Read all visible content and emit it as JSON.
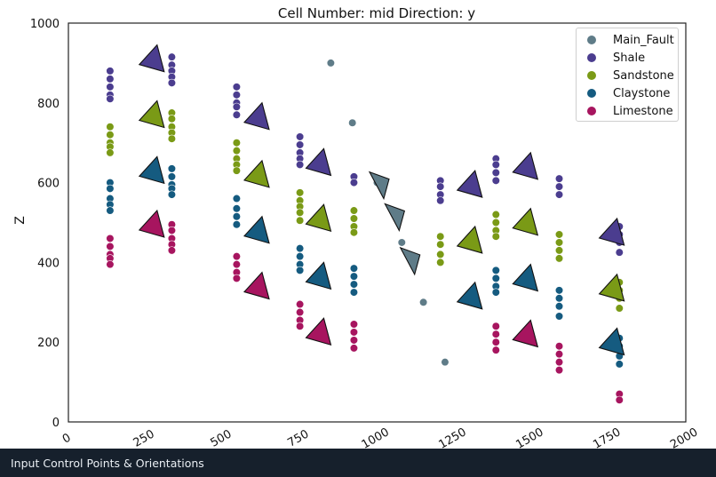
{
  "chart_data": {
    "type": "scatter",
    "title": "Cell Number: mid Direction: y",
    "xlabel": "",
    "ylabel": "Z",
    "xlim": [
      0,
      2000
    ],
    "ylim": [
      0,
      1000
    ],
    "x_ticks": [
      "0",
      "250",
      "500",
      "750",
      "1000",
      "1250",
      "1500",
      "1750",
      "2000"
    ],
    "y_ticks": [
      "0",
      "200",
      "400",
      "600",
      "800",
      "1000"
    ],
    "grid": false,
    "legend_position": "top-right",
    "series": [
      {
        "name": "Main_Fault",
        "color": "#5f7c88",
        "points": [
          [
            850,
            900
          ],
          [
            920,
            750
          ],
          [
            1000,
            600
          ],
          [
            1080,
            450
          ],
          [
            1150,
            300
          ],
          [
            1220,
            150
          ]
        ],
        "orientations": [
          [
            1010,
            600
          ],
          [
            1060,
            520
          ],
          [
            1110,
            410
          ]
        ]
      },
      {
        "name": "Shale",
        "color": "#4b3d8f",
        "points": [
          [
            135,
            880
          ],
          [
            135,
            860
          ],
          [
            135,
            840
          ],
          [
            135,
            820
          ],
          [
            135,
            810
          ],
          [
            335,
            915
          ],
          [
            335,
            895
          ],
          [
            335,
            880
          ],
          [
            335,
            865
          ],
          [
            335,
            850
          ],
          [
            545,
            840
          ],
          [
            545,
            820
          ],
          [
            545,
            800
          ],
          [
            545,
            790
          ],
          [
            545,
            770
          ],
          [
            750,
            715
          ],
          [
            750,
            695
          ],
          [
            750,
            675
          ],
          [
            750,
            660
          ],
          [
            750,
            645
          ],
          [
            925,
            615
          ],
          [
            925,
            600
          ],
          [
            1205,
            605
          ],
          [
            1205,
            590
          ],
          [
            1205,
            570
          ],
          [
            1205,
            555
          ],
          [
            1385,
            660
          ],
          [
            1385,
            645
          ],
          [
            1385,
            625
          ],
          [
            1385,
            605
          ],
          [
            1590,
            610
          ],
          [
            1590,
            590
          ],
          [
            1590,
            570
          ],
          [
            1785,
            490
          ],
          [
            1785,
            470
          ],
          [
            1785,
            450
          ],
          [
            1785,
            425
          ]
        ],
        "orientations": [
          [
            270,
            905
          ],
          [
            610,
            760
          ],
          [
            810,
            645
          ],
          [
            1300,
            590
          ],
          [
            1480,
            635
          ],
          [
            1760,
            470
          ]
        ]
      },
      {
        "name": "Sandstone",
        "color": "#7a9a16",
        "points": [
          [
            135,
            740
          ],
          [
            135,
            720
          ],
          [
            135,
            700
          ],
          [
            135,
            690
          ],
          [
            135,
            675
          ],
          [
            335,
            775
          ],
          [
            335,
            760
          ],
          [
            335,
            740
          ],
          [
            335,
            725
          ],
          [
            335,
            710
          ],
          [
            545,
            700
          ],
          [
            545,
            680
          ],
          [
            545,
            660
          ],
          [
            545,
            645
          ],
          [
            545,
            630
          ],
          [
            750,
            575
          ],
          [
            750,
            555
          ],
          [
            750,
            540
          ],
          [
            750,
            525
          ],
          [
            750,
            505
          ],
          [
            925,
            530
          ],
          [
            925,
            510
          ],
          [
            925,
            490
          ],
          [
            925,
            475
          ],
          [
            1205,
            465
          ],
          [
            1205,
            445
          ],
          [
            1205,
            420
          ],
          [
            1205,
            400
          ],
          [
            1385,
            520
          ],
          [
            1385,
            500
          ],
          [
            1385,
            480
          ],
          [
            1385,
            465
          ],
          [
            1590,
            470
          ],
          [
            1590,
            450
          ],
          [
            1590,
            430
          ],
          [
            1590,
            410
          ],
          [
            1785,
            350
          ],
          [
            1785,
            330
          ],
          [
            1785,
            310
          ],
          [
            1785,
            285
          ]
        ],
        "orientations": [
          [
            270,
            765
          ],
          [
            610,
            615
          ],
          [
            810,
            505
          ],
          [
            1300,
            450
          ],
          [
            1480,
            495
          ],
          [
            1760,
            330
          ]
        ]
      },
      {
        "name": "Claystone",
        "color": "#155b80",
        "points": [
          [
            135,
            600
          ],
          [
            135,
            585
          ],
          [
            135,
            560
          ],
          [
            135,
            545
          ],
          [
            135,
            530
          ],
          [
            335,
            635
          ],
          [
            335,
            615
          ],
          [
            335,
            595
          ],
          [
            335,
            585
          ],
          [
            335,
            570
          ],
          [
            545,
            560
          ],
          [
            545,
            535
          ],
          [
            545,
            515
          ],
          [
            545,
            495
          ],
          [
            750,
            435
          ],
          [
            750,
            415
          ],
          [
            750,
            395
          ],
          [
            750,
            380
          ],
          [
            925,
            385
          ],
          [
            925,
            365
          ],
          [
            925,
            345
          ],
          [
            925,
            325
          ],
          [
            1385,
            380
          ],
          [
            1385,
            360
          ],
          [
            1385,
            340
          ],
          [
            1385,
            325
          ],
          [
            1590,
            330
          ],
          [
            1590,
            310
          ],
          [
            1590,
            290
          ],
          [
            1590,
            265
          ],
          [
            1785,
            210
          ],
          [
            1785,
            190
          ],
          [
            1785,
            165
          ],
          [
            1785,
            145
          ]
        ],
        "orientations": [
          [
            270,
            625
          ],
          [
            610,
            475
          ],
          [
            810,
            360
          ],
          [
            1300,
            310
          ],
          [
            1480,
            355
          ],
          [
            1760,
            195
          ]
        ]
      },
      {
        "name": "Limestone",
        "color": "#a7155f",
        "points": [
          [
            135,
            460
          ],
          [
            135,
            440
          ],
          [
            135,
            420
          ],
          [
            135,
            410
          ],
          [
            135,
            395
          ],
          [
            335,
            495
          ],
          [
            335,
            480
          ],
          [
            335,
            460
          ],
          [
            335,
            445
          ],
          [
            335,
            430
          ],
          [
            545,
            415
          ],
          [
            545,
            395
          ],
          [
            545,
            375
          ],
          [
            545,
            360
          ],
          [
            750,
            295
          ],
          [
            750,
            275
          ],
          [
            750,
            255
          ],
          [
            750,
            240
          ],
          [
            925,
            245
          ],
          [
            925,
            225
          ],
          [
            925,
            205
          ],
          [
            925,
            185
          ],
          [
            1385,
            240
          ],
          [
            1385,
            220
          ],
          [
            1385,
            200
          ],
          [
            1385,
            180
          ],
          [
            1590,
            190
          ],
          [
            1590,
            170
          ],
          [
            1590,
            150
          ],
          [
            1590,
            130
          ],
          [
            1785,
            70
          ],
          [
            1785,
            55
          ]
        ],
        "orientations": [
          [
            270,
            490
          ],
          [
            610,
            335
          ],
          [
            810,
            220
          ],
          [
            1480,
            215
          ]
        ]
      }
    ]
  },
  "footer": {
    "caption": "Input Control Points & Orientations"
  }
}
